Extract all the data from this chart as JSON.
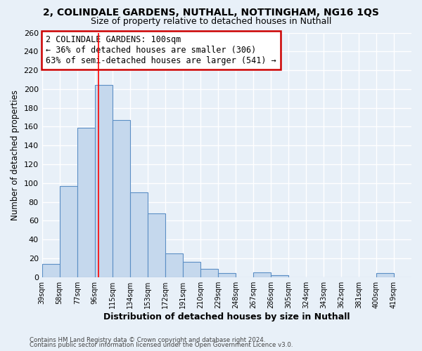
{
  "title": "2, COLINDALE GARDENS, NUTHALL, NOTTINGHAM, NG16 1QS",
  "subtitle": "Size of property relative to detached houses in Nuthall",
  "xlabel": "Distribution of detached houses by size in Nuthall",
  "ylabel": "Number of detached properties",
  "footer_line1": "Contains HM Land Registry data © Crown copyright and database right 2024.",
  "footer_line2": "Contains public sector information licensed under the Open Government Licence v3.0.",
  "bin_labels": [
    "39sqm",
    "58sqm",
    "77sqm",
    "96sqm",
    "115sqm",
    "134sqm",
    "153sqm",
    "172sqm",
    "191sqm",
    "210sqm",
    "229sqm",
    "248sqm",
    "267sqm",
    "286sqm",
    "305sqm",
    "324sqm",
    "343sqm",
    "362sqm",
    "381sqm",
    "400sqm",
    "419sqm"
  ],
  "bar_heights": [
    14,
    97,
    159,
    204,
    167,
    90,
    68,
    25,
    16,
    9,
    4,
    0,
    5,
    2,
    0,
    0,
    0,
    0,
    0,
    4,
    0
  ],
  "bin_edges": [
    39,
    58,
    77,
    96,
    115,
    134,
    153,
    172,
    191,
    210,
    229,
    248,
    267,
    286,
    305,
    324,
    343,
    362,
    381,
    400,
    419,
    438
  ],
  "bar_color": "#c5d8ed",
  "bar_edge_color": "#5b8fc5",
  "red_line_x": 100,
  "annotation_title": "2 COLINDALE GARDENS: 100sqm",
  "annotation_line1": "← 36% of detached houses are smaller (306)",
  "annotation_line2": "63% of semi-detached houses are larger (541) →",
  "annotation_box_color": "#ffffff",
  "annotation_box_edge": "#cc0000",
  "ylim": [
    0,
    260
  ],
  "yticks": [
    0,
    20,
    40,
    60,
    80,
    100,
    120,
    140,
    160,
    180,
    200,
    220,
    240,
    260
  ],
  "background_color": "#e8f0f8",
  "grid_color": "#ffffff",
  "title_fontsize": 10,
  "subtitle_fontsize": 9
}
